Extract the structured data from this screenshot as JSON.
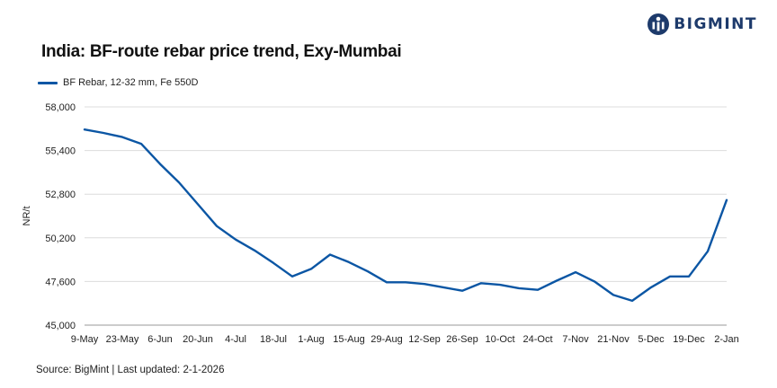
{
  "brand": {
    "name": "BIGMINT",
    "logo_icon": "bigmint-logo-icon",
    "color": "#1d3a6b"
  },
  "source": "Source: BigMint | Last updated: 2-1-2026",
  "chart_data": {
    "type": "line",
    "title": "India: BF-route rebar price trend, Exy-Mumbai",
    "xlabel": "",
    "ylabel": "NR/t",
    "ylim": [
      45000,
      58000
    ],
    "yticks": [
      45000,
      47600,
      50200,
      52800,
      55400,
      58000
    ],
    "ytick_labels": [
      "45,000",
      "47,600",
      "50,200",
      "52,800",
      "55,400",
      "58,000"
    ],
    "x_tick_labels": [
      "9-May",
      "23-May",
      "6-Jun",
      "20-Jun",
      "4-Jul",
      "18-Jul",
      "1-Aug",
      "15-Aug",
      "29-Aug",
      "12-Sep",
      "26-Sep",
      "10-Oct",
      "24-Oct",
      "7-Nov",
      "21-Nov",
      "5-Dec",
      "19-Dec",
      "2-Jan"
    ],
    "grid": "horizontal",
    "legend_position": "top-left",
    "series": [
      {
        "name": "BF Rebar, 12-32 mm, Fe 550D",
        "color": "#0b56a4",
        "x": [
          "9-May",
          "16-May",
          "23-May",
          "30-May",
          "6-Jun",
          "13-Jun",
          "20-Jun",
          "27-Jun",
          "4-Jul",
          "11-Jul",
          "18-Jul",
          "25-Jul",
          "1-Aug",
          "8-Aug",
          "15-Aug",
          "22-Aug",
          "29-Aug",
          "5-Sep",
          "12-Sep",
          "19-Sep",
          "26-Sep",
          "3-Oct",
          "10-Oct",
          "17-Oct",
          "24-Oct",
          "31-Oct",
          "7-Nov",
          "14-Nov",
          "21-Nov",
          "28-Nov",
          "5-Dec",
          "12-Dec",
          "19-Dec",
          "26-Dec",
          "2-Jan"
        ],
        "values": [
          56650,
          56450,
          56200,
          55800,
          54600,
          53500,
          52200,
          50900,
          50100,
          49450,
          48700,
          47900,
          48350,
          49200,
          48750,
          48200,
          47550,
          47550,
          47450,
          47250,
          47050,
          47500,
          47400,
          47200,
          47100,
          47650,
          48150,
          47600,
          46800,
          46450,
          47250,
          47900,
          47900,
          49400,
          52450
        ]
      }
    ]
  }
}
